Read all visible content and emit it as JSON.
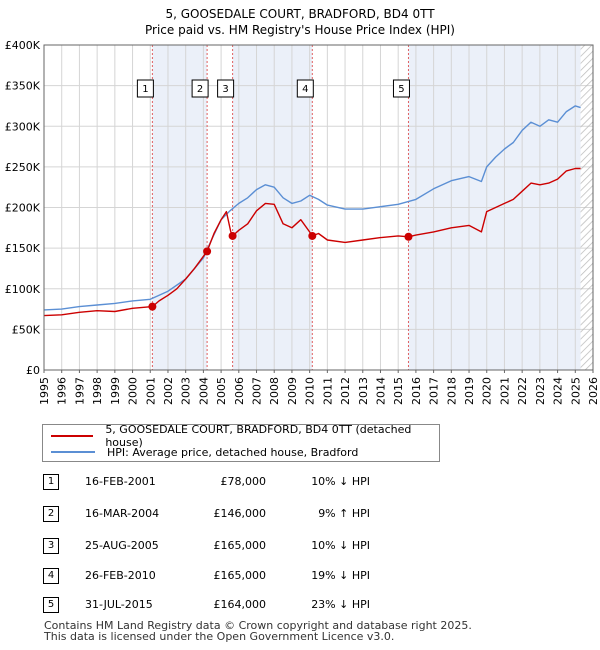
{
  "chart_data": {
    "type": "line",
    "title": "5, GOOSEDALE COURT, BRADFORD, BD4 0TT",
    "subtitle": "Price paid vs. HM Registry's House Price Index (HPI)",
    "xlim": [
      1995,
      2026
    ],
    "ylim": [
      0,
      400000
    ],
    "yticks": [
      0,
      50000,
      100000,
      150000,
      200000,
      250000,
      300000,
      350000,
      400000
    ],
    "ytick_labels": [
      "£0",
      "£50K",
      "£100K",
      "£150K",
      "£200K",
      "£250K",
      "£300K",
      "£350K",
      "£400K"
    ],
    "xticks": [
      1995,
      1996,
      1997,
      1998,
      1999,
      2000,
      2001,
      2002,
      2003,
      2004,
      2005,
      2006,
      2007,
      2008,
      2009,
      2010,
      2011,
      2012,
      2013,
      2014,
      2015,
      2016,
      2017,
      2018,
      2019,
      2020,
      2021,
      2022,
      2023,
      2024,
      2025,
      2026
    ],
    "grid": true,
    "shaded_ranges": [
      [
        2001.12,
        2004.21
      ],
      [
        2005.65,
        2010.15
      ],
      [
        2015.58,
        2025.3
      ]
    ],
    "hatch_from": 2025.3,
    "series": [
      {
        "name": "5, GOOSEDALE COURT, BRADFORD, BD4 0TT (detached house)",
        "color": "#cc0000",
        "x": [
          1995,
          1996,
          1997,
          1998,
          1999,
          2000,
          2001.12,
          2001.5,
          2002,
          2002.5,
          2003,
          2003.5,
          2004.0,
          2004.21,
          2004.6,
          2005.0,
          2005.3,
          2005.55,
          2005.65,
          2006.0,
          2006.5,
          2007.0,
          2007.5,
          2008.0,
          2008.5,
          2009.0,
          2009.5,
          2010.0,
          2010.15,
          2010.5,
          2011,
          2012,
          2013,
          2014,
          2015,
          2015.58,
          2016,
          2017,
          2018,
          2019,
          2019.7,
          2020,
          2020.5,
          2021,
          2021.5,
          2022,
          2022.5,
          2023,
          2023.5,
          2024,
          2024.5,
          2025.0,
          2025.3
        ],
        "values": [
          67000,
          68000,
          71000,
          73000,
          72000,
          76000,
          78000,
          85000,
          92000,
          100000,
          112000,
          125000,
          140000,
          146000,
          168000,
          185000,
          195000,
          170000,
          165000,
          172000,
          180000,
          196000,
          205000,
          204000,
          180000,
          175000,
          185000,
          170000,
          165000,
          168000,
          160000,
          157000,
          160000,
          163000,
          165000,
          164000,
          166000,
          170000,
          175000,
          178000,
          170000,
          195000,
          200000,
          205000,
          210000,
          220000,
          230000,
          228000,
          230000,
          235000,
          245000,
          248000,
          248000
        ]
      },
      {
        "name": "HPI: Average price, detached house, Bradford",
        "color": "#5b8fd4",
        "x": [
          1995,
          1996,
          1997,
          1998,
          1999,
          2000,
          2001.0,
          2002,
          2003,
          2004,
          2004.5,
          2005,
          2005.5,
          2006,
          2006.5,
          2007,
          2007.5,
          2008,
          2008.5,
          2009,
          2009.5,
          2010,
          2010.5,
          2011,
          2012,
          2013,
          2014,
          2015,
          2016,
          2017,
          2018,
          2019,
          2019.7,
          2020,
          2020.5,
          2021,
          2021.5,
          2022,
          2022.5,
          2023,
          2023.5,
          2024,
          2024.5,
          2025.0,
          2025.3
        ],
        "values": [
          74000,
          75000,
          78000,
          80000,
          82000,
          85000,
          87000,
          97000,
          112000,
          138000,
          162000,
          185000,
          196000,
          205000,
          212000,
          222000,
          228000,
          225000,
          212000,
          205000,
          208000,
          215000,
          210000,
          203000,
          198000,
          198000,
          201000,
          204000,
          210000,
          223000,
          233000,
          238000,
          232000,
          250000,
          262000,
          272000,
          280000,
          295000,
          305000,
          300000,
          308000,
          305000,
          318000,
          325000,
          323000
        ]
      }
    ],
    "markers": [
      {
        "label": "1",
        "x": 2001.12,
        "y": 78000
      },
      {
        "label": "2",
        "x": 2004.21,
        "y": 146000
      },
      {
        "label": "3",
        "x": 2005.65,
        "y": 165000
      },
      {
        "label": "4",
        "x": 2010.15,
        "y": 165000
      },
      {
        "label": "5",
        "x": 2015.58,
        "y": 164000
      }
    ]
  },
  "legend": {
    "property": "5, GOOSEDALE COURT, BRADFORD, BD4 0TT (detached house)",
    "hpi": "HPI: Average price, detached house, Bradford",
    "property_color": "#cc0000",
    "hpi_color": "#5b8fd4"
  },
  "sales": [
    {
      "num": "1",
      "date": "16-FEB-2001",
      "price": "£78,000",
      "hpi": "10% ↓ HPI"
    },
    {
      "num": "2",
      "date": "16-MAR-2004",
      "price": "£146,000",
      "hpi": "9% ↑ HPI"
    },
    {
      "num": "3",
      "date": "25-AUG-2005",
      "price": "£165,000",
      "hpi": "10% ↓ HPI"
    },
    {
      "num": "4",
      "date": "26-FEB-2010",
      "price": "£165,000",
      "hpi": "19% ↓ HPI"
    },
    {
      "num": "5",
      "date": "31-JUL-2015",
      "price": "£164,000",
      "hpi": "23% ↓ HPI"
    }
  ],
  "footer": {
    "line1": "Contains HM Land Registry data © Crown copyright and database right 2025.",
    "line2": "This data is licensed under the Open Government Licence v3.0."
  }
}
